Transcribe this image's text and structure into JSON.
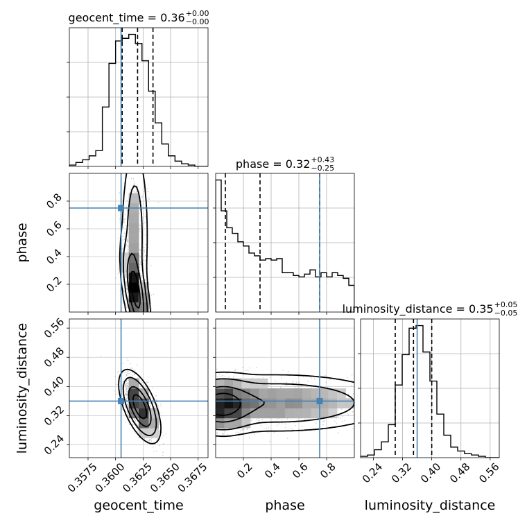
{
  "chart_data": {
    "type": "corner",
    "parameters": [
      "geocent_time",
      "phase",
      "luminosity_distance"
    ],
    "truths": {
      "geocent_time": 0.3605,
      "phase": 0.75,
      "luminosity_distance": 0.36
    },
    "truth_color": "#4682b4",
    "grid": true,
    "titles": [
      {
        "param": "geocent_time",
        "text": "geocent_time = 0.36",
        "plus": "+0.00",
        "minus": "−0.00"
      },
      {
        "param": "phase",
        "text": "phase = 0.32",
        "plus": "+0.43",
        "minus": "−0.25"
      },
      {
        "param": "luminosity_distance",
        "text": "luminosity_distance = 0.35",
        "plus": "+0.05",
        "minus": "−0.05"
      }
    ],
    "ranges": {
      "geocent_time": [
        0.3558,
        0.3684
      ],
      "phase": [
        0.0,
        1.0
      ],
      "luminosity_distance": [
        0.205,
        0.585
      ]
    },
    "ticks": {
      "geocent_time": [
        "0.3575",
        "0.3600",
        "0.3625",
        "0.3650",
        "0.3675"
      ],
      "phase": [
        "0.2",
        "0.4",
        "0.6",
        "0.8"
      ],
      "luminosity_distance": [
        "0.24",
        "0.32",
        "0.40",
        "0.48",
        "0.56"
      ]
    },
    "axis_labels": {
      "x": [
        "geocent_time",
        "phase",
        "luminosity_distance"
      ],
      "y": [
        "phase",
        "luminosity_distance"
      ]
    },
    "histograms": {
      "geocent_time": {
        "bin_start": 0.3558,
        "bin_width": 0.0006,
        "counts": [
          0.01,
          0.03,
          0.05,
          0.08,
          0.12,
          0.45,
          0.78,
          0.95,
          0.97,
          1.0,
          0.93,
          0.8,
          0.57,
          0.33,
          0.17,
          0.08,
          0.04,
          0.02,
          0.01,
          0.0,
          0.0
        ],
        "quantiles": [
          0.3606,
          0.362,
          0.3634
        ]
      },
      "phase": {
        "bin_start": 0.0,
        "bin_width": 0.04,
        "counts": [
          0.94,
          0.72,
          0.6,
          0.56,
          0.5,
          0.47,
          0.42,
          0.4,
          0.37,
          0.38,
          0.37,
          0.38,
          0.28,
          0.28,
          0.26,
          0.25,
          0.27,
          0.3,
          0.25,
          0.28,
          0.25,
          0.28,
          0.26,
          0.24,
          0.19
        ],
        "quantiles": [
          0.07,
          0.32,
          0.75
        ]
      },
      "luminosity_distance": {
        "bin_start": 0.205,
        "bin_width": 0.019,
        "counts": [
          0.01,
          0.02,
          0.06,
          0.12,
          0.25,
          0.55,
          0.78,
          0.98,
          1.0,
          0.8,
          0.58,
          0.33,
          0.17,
          0.08,
          0.05,
          0.03,
          0.02,
          0.01,
          0.0,
          0.0
        ],
        "quantiles": [
          0.3,
          0.35,
          0.4
        ]
      }
    },
    "blobs": {
      "phase_vs_geocent_time": [
        {
          "cx": 0.36185,
          "cy": 0.14,
          "sx": 0.00055,
          "sy": 0.16,
          "w": 1.0,
          "r": -0.6
        },
        {
          "cx": 0.36175,
          "cy": 0.55,
          "sx": 0.00055,
          "sy": 0.3,
          "w": 0.35,
          "r": 0.0
        }
      ],
      "luminosity_distance_vs_geocent_time": [
        {
          "cx": 0.3622,
          "cy": 0.345,
          "sx": 0.00075,
          "sy": 0.04,
          "w": 1.0,
          "r": -0.6
        }
      ],
      "luminosity_distance_vs_phase": [
        {
          "cx": 0.04,
          "cy": 0.35,
          "sx": 0.12,
          "sy": 0.035,
          "w": 1.0,
          "r": 0.0
        },
        {
          "cx": 0.45,
          "cy": 0.355,
          "sx": 0.4,
          "sy": 0.038,
          "w": 0.5,
          "r": 0.0
        }
      ]
    }
  }
}
